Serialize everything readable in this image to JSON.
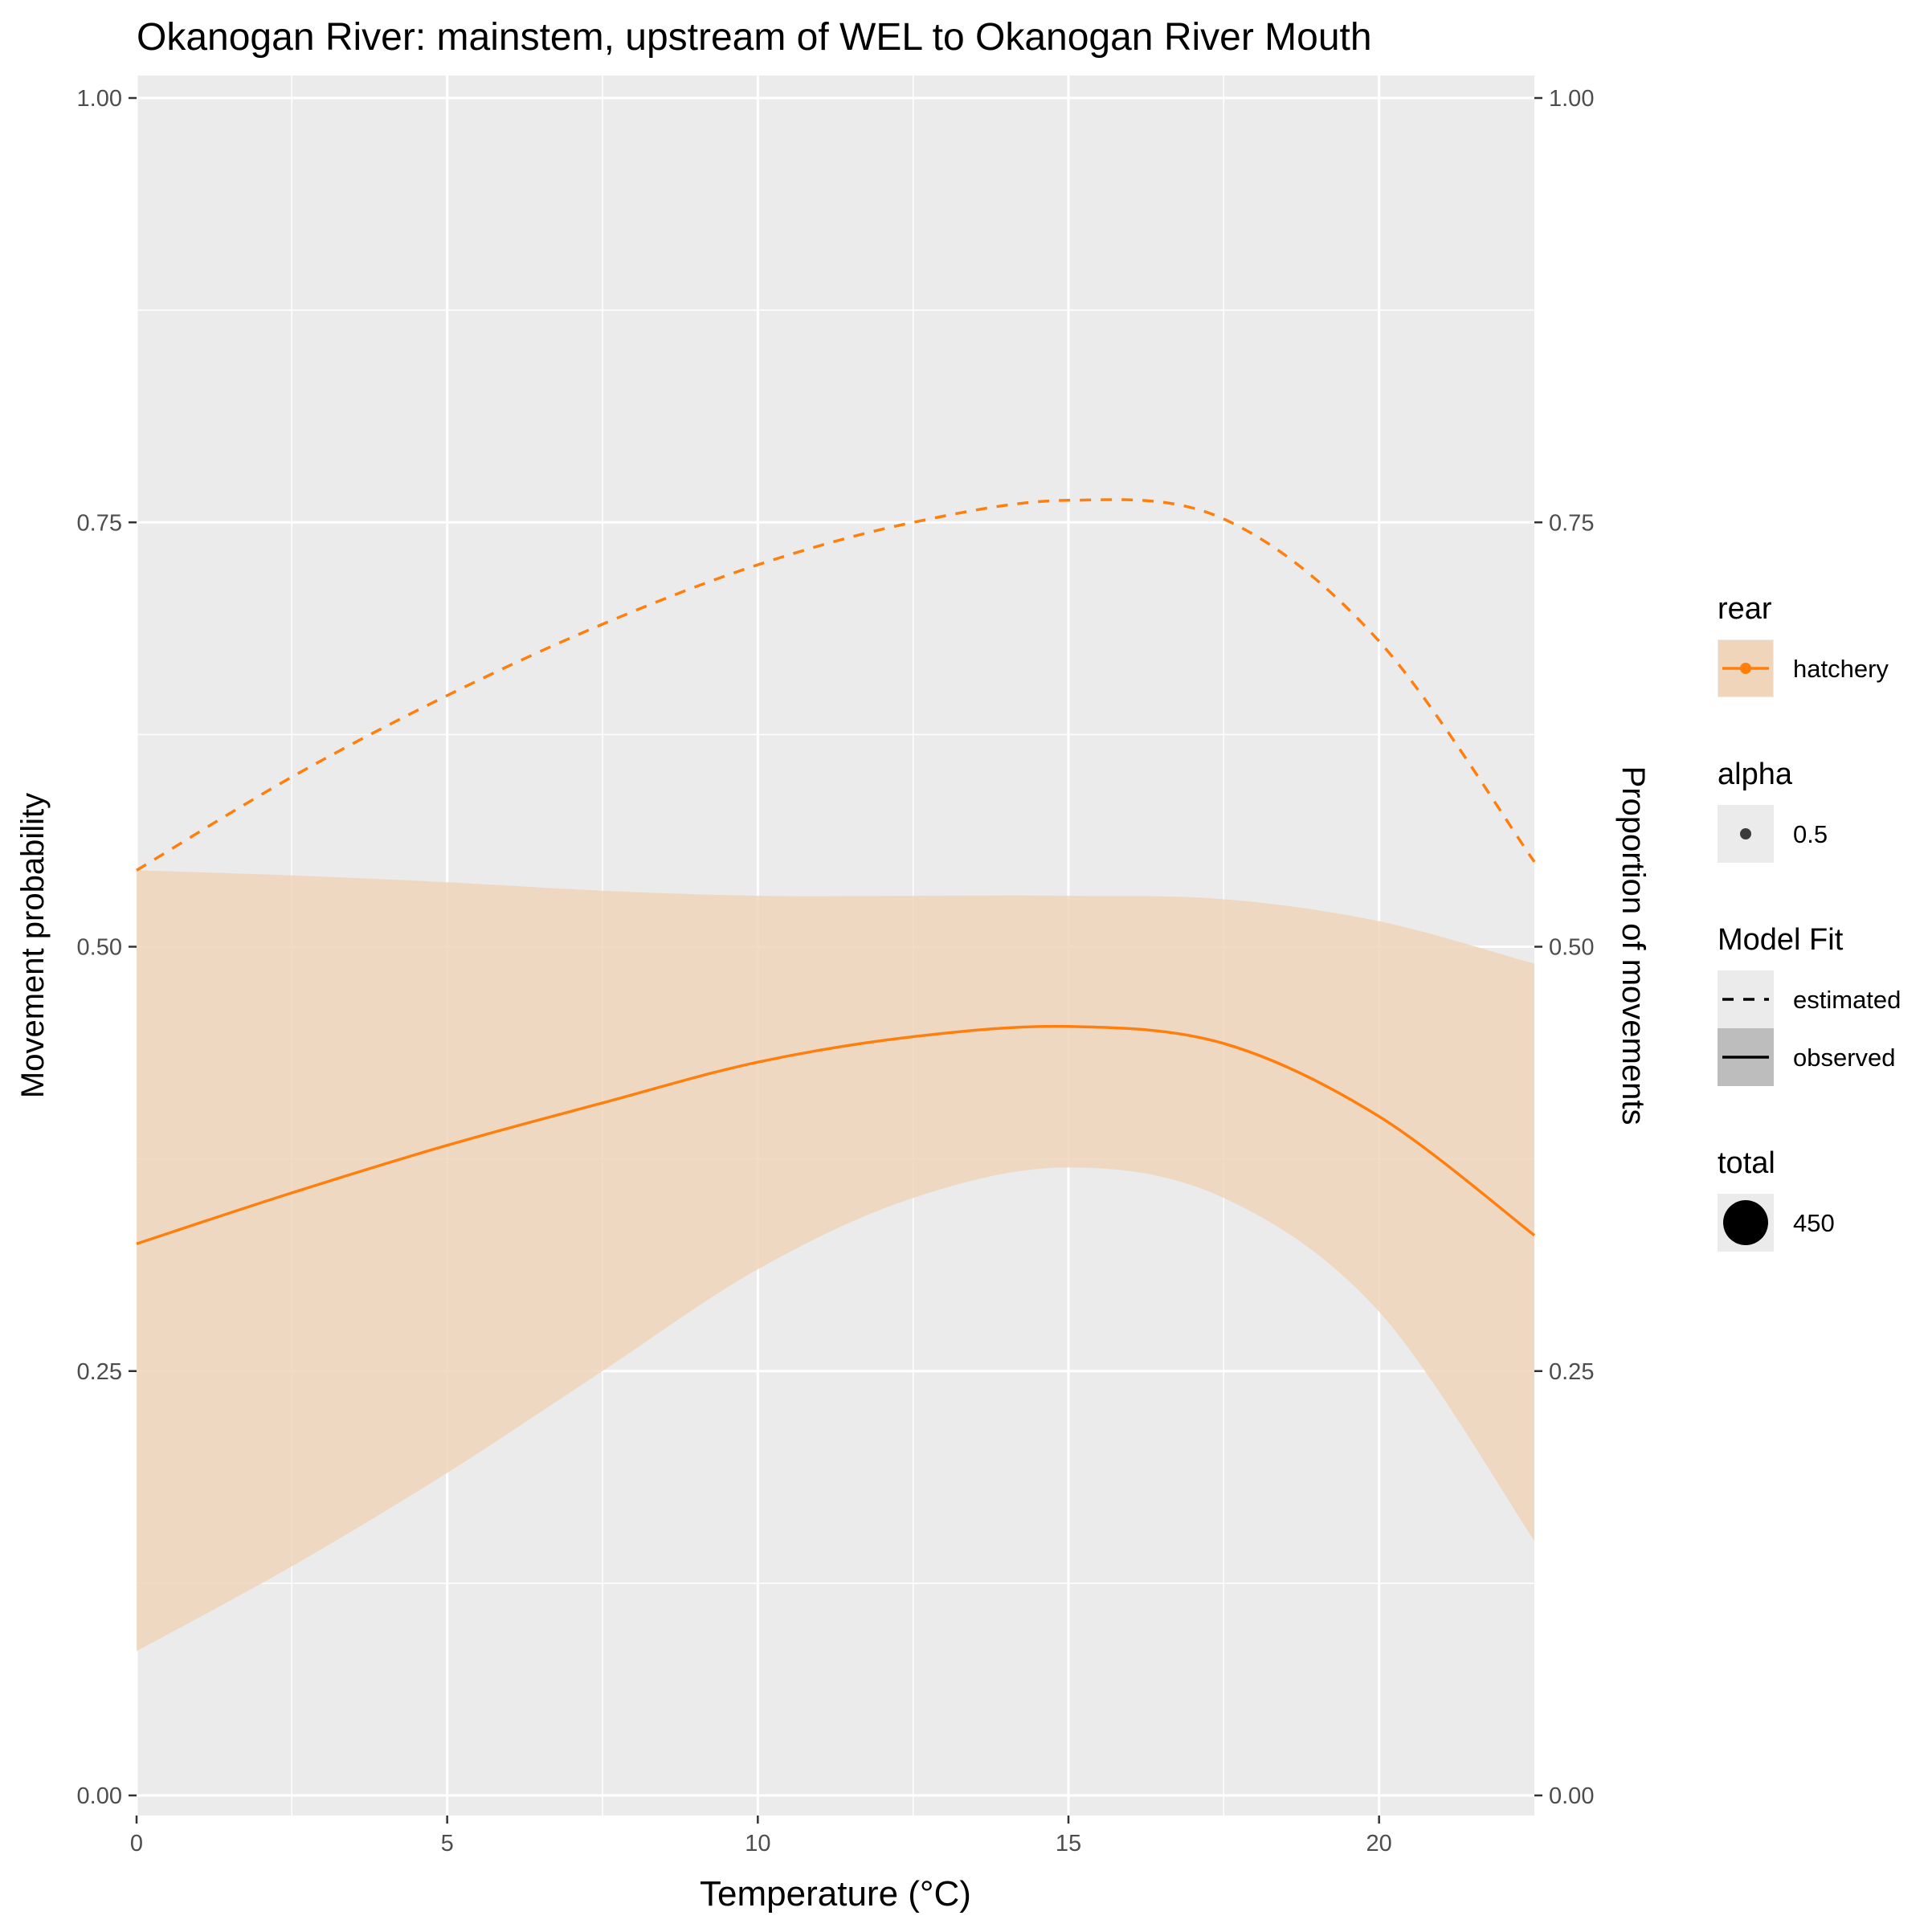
{
  "chart_data": {
    "type": "line",
    "title": "Okanogan River: mainstem, upstream of WEL to Okanogan River Mouth",
    "xlabel": "Temperature (°C)",
    "ylabel": "Movement probability",
    "ylabel_right": "Proportion of movements",
    "xlim": [
      0,
      22.5
    ],
    "ylim": [
      0,
      1
    ],
    "x_ticks": [
      "0",
      "5",
      "10",
      "15",
      "20"
    ],
    "y_ticks": [
      "0.00",
      "0.25",
      "0.50",
      "0.75",
      "1.00"
    ],
    "grid": true,
    "colors": {
      "series": "#ff7f0e",
      "ribbon": "#f0d5bb",
      "panel": "#ebebeb",
      "gridline": "#ffffff"
    },
    "x": [
      0,
      2.5,
      5,
      7.5,
      10,
      12.5,
      15,
      17.5,
      20,
      22.5
    ],
    "series": [
      {
        "name": "estimated",
        "line": "dashed",
        "values": [
          0.545,
          0.6,
          0.648,
          0.69,
          0.725,
          0.75,
          0.763,
          0.752,
          0.68,
          0.55
        ]
      },
      {
        "name": "observed",
        "line": "solid",
        "values": [
          0.325,
          0.355,
          0.383,
          0.408,
          0.432,
          0.447,
          0.453,
          0.443,
          0.4,
          0.33
        ],
        "ribbon_lower": [
          0.085,
          0.135,
          0.19,
          0.25,
          0.31,
          0.352,
          0.37,
          0.352,
          0.285,
          0.15
        ],
        "ribbon_upper": [
          0.545,
          0.542,
          0.538,
          0.533,
          0.53,
          0.53,
          0.53,
          0.528,
          0.515,
          0.49
        ]
      }
    ],
    "legend_position": "right",
    "legend": [
      {
        "title": "rear",
        "items": [
          {
            "label": "hatchery",
            "icon": "point-line"
          }
        ]
      },
      {
        "title": "alpha",
        "items": [
          {
            "label": "0.5",
            "icon": "small-point"
          }
        ]
      },
      {
        "title": "Model Fit",
        "items": [
          {
            "label": "estimated",
            "icon": "dashed-line"
          },
          {
            "label": "observed",
            "icon": "solid-line"
          }
        ]
      },
      {
        "title": "total",
        "items": [
          {
            "label": "450",
            "icon": "large-point"
          }
        ]
      }
    ]
  }
}
